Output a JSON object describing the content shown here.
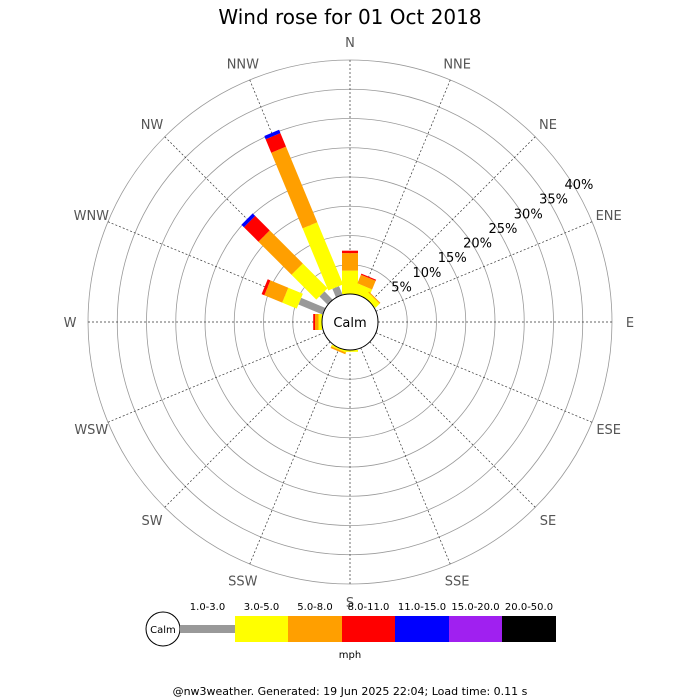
{
  "chart_data": {
    "type": "wind-rose",
    "title": "Wind rose for 01 Oct 2018",
    "directions": [
      "N",
      "NNE",
      "NE",
      "ENE",
      "E",
      "ESE",
      "SE",
      "SSE",
      "S",
      "SSW",
      "SW",
      "WSW",
      "W",
      "WNW",
      "NW",
      "NNW"
    ],
    "ring_labels": [
      "5%",
      "10%",
      "15%",
      "20%",
      "25%",
      "30%",
      "35%",
      "40%"
    ],
    "ring_values": [
      5,
      10,
      15,
      20,
      25,
      30,
      35,
      40
    ],
    "calm_label": "Calm",
    "unit": "mph",
    "bins": [
      {
        "label": "1.0-3.0",
        "color": "#999999"
      },
      {
        "label": "3.0-5.0",
        "color": "#ffff00"
      },
      {
        "label": "5.0-8.0",
        "color": "#ff9f00"
      },
      {
        "label": "8.0-11.0",
        "color": "#ff0000"
      },
      {
        "label": "11.0-15.0",
        "color": "#0000ff"
      },
      {
        "label": "15.0-20.0",
        "color": "#a020f0"
      },
      {
        "label": "20.0-50.0",
        "color": "#000000"
      }
    ],
    "series": {
      "N": [
        0,
        4.0,
        3.0,
        0.4,
        0,
        0,
        0
      ],
      "NNE": [
        0,
        1.8,
        1.6,
        0.2,
        0,
        0,
        0
      ],
      "NE": [
        0,
        1.0,
        0.2,
        0,
        0,
        0,
        0
      ],
      "ENE": [
        0,
        0,
        0,
        0,
        0,
        0,
        0
      ],
      "E": [
        0,
        0,
        0,
        0,
        0,
        0,
        0
      ],
      "ESE": [
        0,
        0,
        0,
        0,
        0,
        0,
        0
      ],
      "SE": [
        0,
        0,
        0,
        0,
        0,
        0,
        0
      ],
      "SSE": [
        0,
        0,
        0,
        0,
        0,
        0,
        0
      ],
      "S": [
        0,
        0.3,
        0,
        0,
        0,
        0,
        0
      ],
      "SSW": [
        0,
        0.3,
        0.3,
        0,
        0,
        0,
        0
      ],
      "SW": [
        0,
        0,
        0,
        0,
        0,
        0,
        0
      ],
      "WSW": [
        0,
        0,
        0,
        0,
        0,
        0,
        0
      ],
      "W": [
        0,
        0.6,
        0.6,
        0.3,
        0,
        0,
        0
      ],
      "WNW": [
        4.5,
        2.7,
        3.3,
        0.5,
        0,
        0,
        0
      ],
      "NW": [
        2.0,
        6.0,
        8.0,
        3.5,
        0.6,
        0,
        0
      ],
      "NNW": [
        1.6,
        11.5,
        14.0,
        2.5,
        0.6,
        0,
        0
      ]
    },
    "footer": "@nw3weather. Generated: 19 Jun 2025 22:04; Load time: 0.11 s"
  }
}
